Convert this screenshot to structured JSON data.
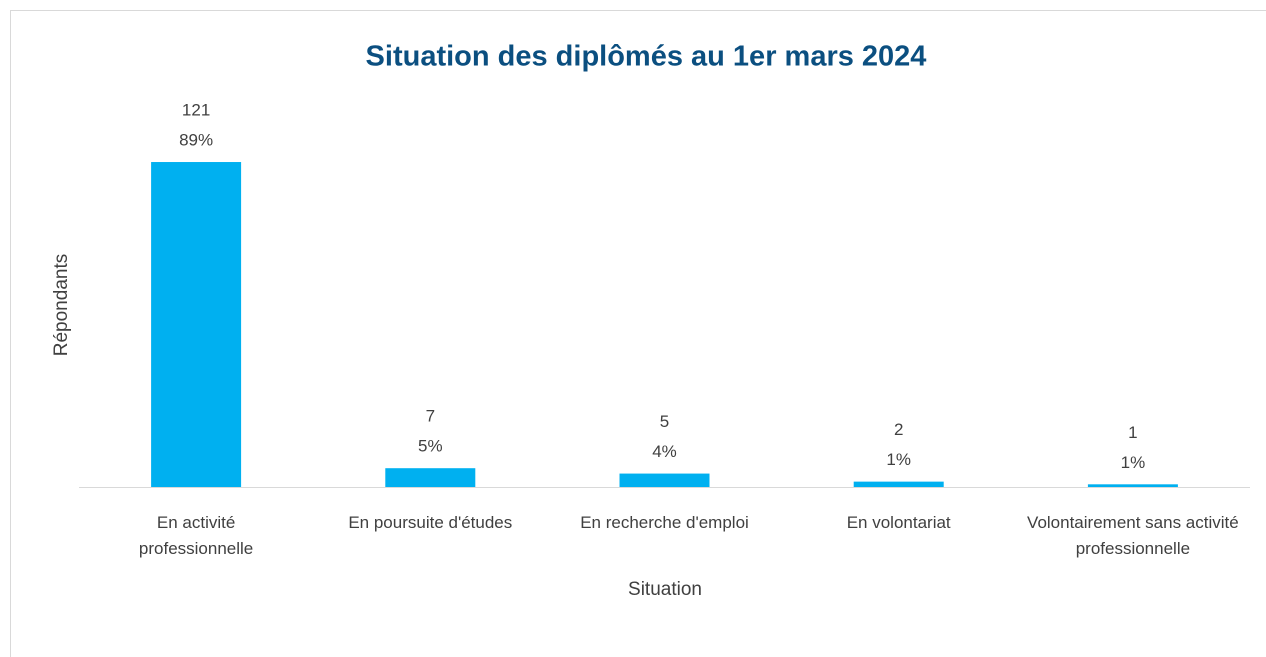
{
  "chart_data": {
    "type": "bar",
    "title": "Situation des diplômés au 1er mars 2024",
    "x_label": "Situation",
    "y_label": "Répondants",
    "categories": [
      "En activité professionnelle",
      "En poursuite d'études",
      "En recherche d'emploi",
      "En volontariat",
      "Volontairement sans activité professionnelle"
    ],
    "values": [
      121,
      7,
      5,
      2,
      1
    ],
    "percent_labels": [
      "89%",
      "5%",
      "4%",
      "1%",
      "1%"
    ],
    "color": "#00b0f0",
    "ylim": [
      0,
      140
    ]
  }
}
